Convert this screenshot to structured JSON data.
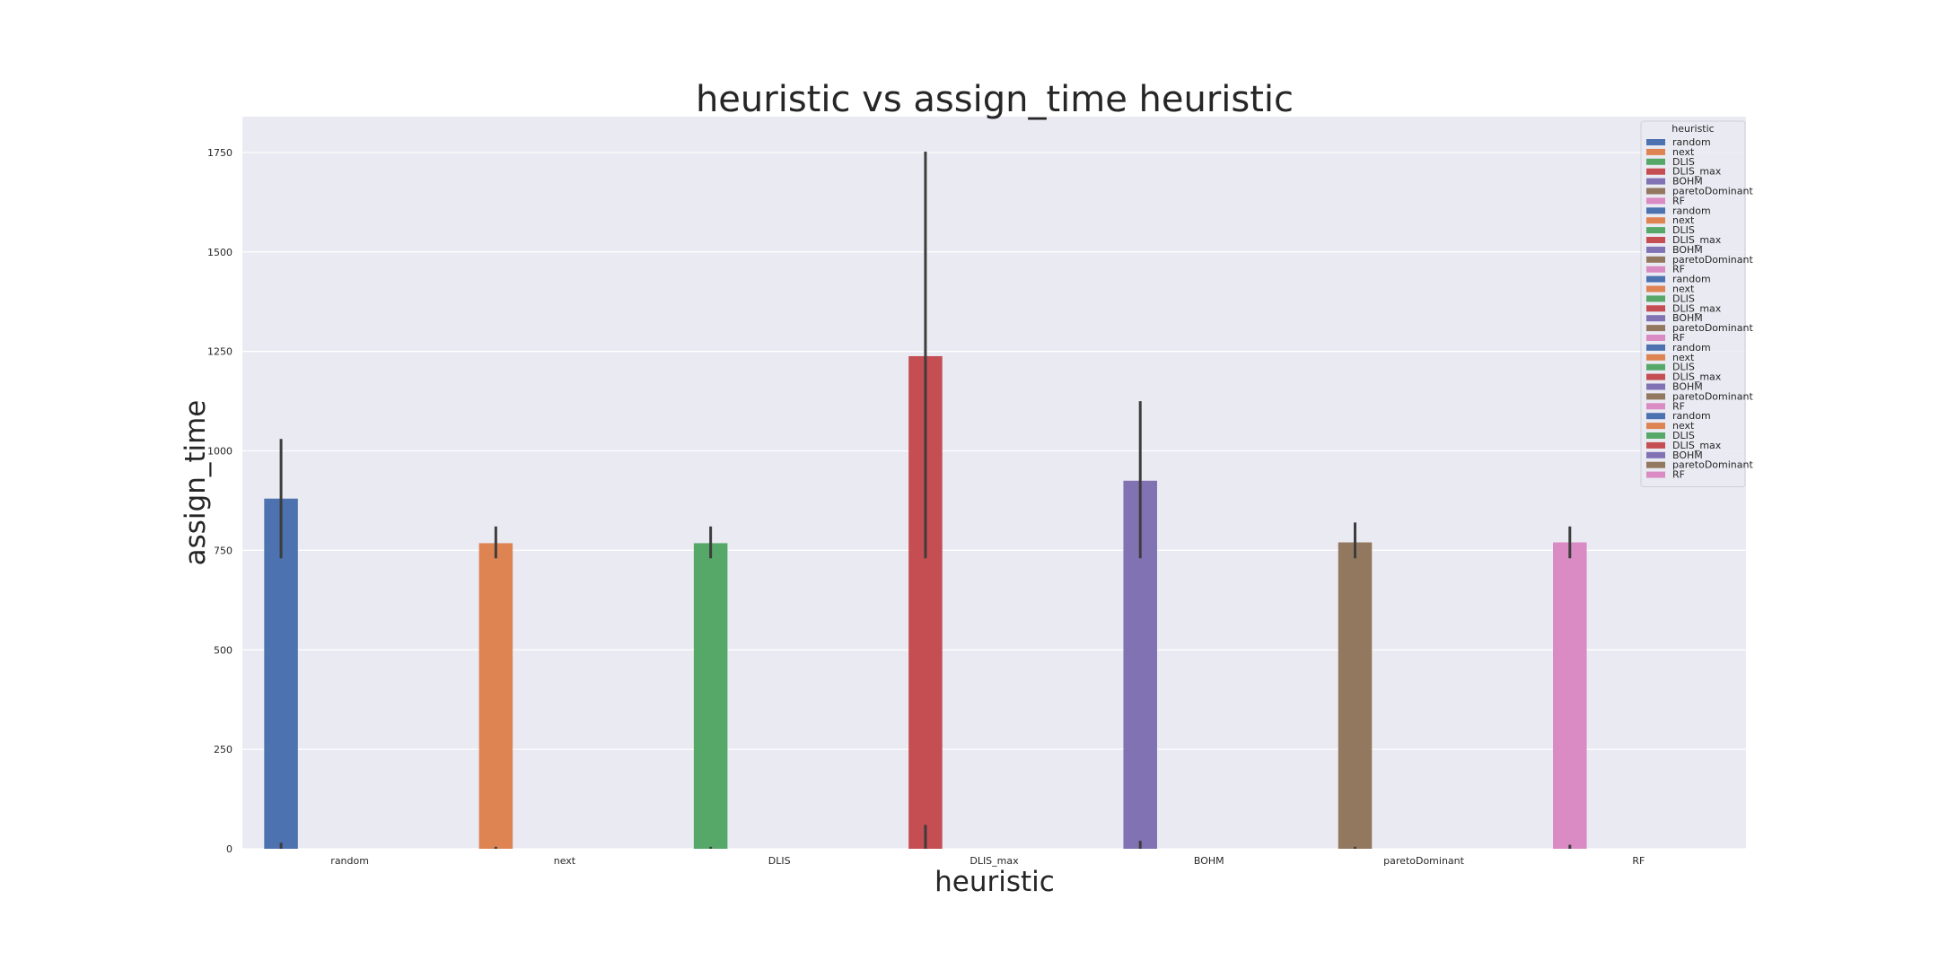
{
  "chart_data": {
    "type": "bar",
    "title": "heuristic vs assign_time heuristic",
    "xlabel": "heuristic",
    "ylabel": "assign_time",
    "categories": [
      "random",
      "next",
      "DLIS",
      "DLIS_max",
      "BOHM",
      "paretoDominant",
      "RF"
    ],
    "ylim": [
      0,
      1840
    ],
    "yticks": [
      0,
      250,
      500,
      750,
      1000,
      1250,
      1500,
      1750
    ],
    "grid": true,
    "legend": {
      "title": "heuristic",
      "placement": "top-right",
      "entries": [
        "random",
        "next",
        "DLIS",
        "DLIS_max",
        "BOHM",
        "paretoDominant",
        "RF",
        "random",
        "next",
        "DLIS",
        "DLIS_max",
        "BOHM",
        "paretoDominant",
        "RF",
        "random",
        "next",
        "DLIS",
        "DLIS_max",
        "BOHM",
        "paretoDominant",
        "RF",
        "random",
        "next",
        "DLIS",
        "DLIS_max",
        "BOHM",
        "paretoDominant",
        "RF",
        "random",
        "next",
        "DLIS",
        "DLIS_max",
        "BOHM",
        "paretoDominant",
        "RF"
      ]
    },
    "series": [
      {
        "name": "random",
        "category": "random",
        "value": 880,
        "ci": [
          730,
          1030
        ],
        "color": "#4c72b0"
      },
      {
        "name": "next",
        "category": "next",
        "value": 768,
        "ci": [
          730,
          810
        ],
        "color": "#dd8452"
      },
      {
        "name": "DLIS",
        "category": "DLIS",
        "value": 768,
        "ci": [
          730,
          810
        ],
        "color": "#55a868"
      },
      {
        "name": "DLIS_max",
        "category": "DLIS_max",
        "value": 1238,
        "ci": [
          730,
          1752
        ],
        "color": "#c44e52"
      },
      {
        "name": "BOHM",
        "category": "BOHM",
        "value": 925,
        "ci": [
          730,
          1125
        ],
        "color": "#8172b3"
      },
      {
        "name": "paretoDominant",
        "category": "paretoDominant",
        "value": 770,
        "ci": [
          730,
          820
        ],
        "color": "#937860"
      },
      {
        "name": "RF",
        "category": "RF",
        "value": 770,
        "ci": [
          730,
          810
        ],
        "color": "#da8bc3"
      }
    ],
    "zero_bars": [
      {
        "category": "random",
        "ci": [
          0,
          15
        ]
      },
      {
        "category": "next",
        "ci": [
          0,
          5
        ]
      },
      {
        "category": "DLIS",
        "ci": [
          0,
          5
        ]
      },
      {
        "category": "DLIS_max",
        "ci": [
          0,
          60
        ]
      },
      {
        "category": "BOHM",
        "ci": [
          0,
          20
        ]
      },
      {
        "category": "paretoDominant",
        "ci": [
          0,
          5
        ]
      },
      {
        "category": "RF",
        "ci": [
          0,
          10
        ]
      }
    ]
  }
}
